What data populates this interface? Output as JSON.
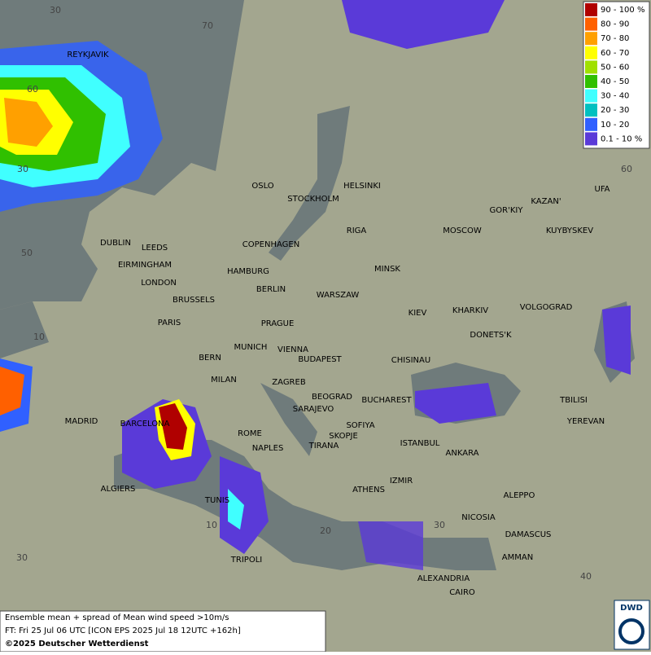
{
  "map": {
    "cities": [
      "REYKJAVIK",
      "DUBLIN",
      "LEEDS",
      "EIRMINGHAM",
      "LONDON",
      "BRUSSELS",
      "PARIS",
      "OSLO",
      "STOCKHOLM",
      "HELSINKI",
      "RIGA",
      "COPENHAGEN",
      "HAMBURG",
      "BERLIN",
      "WARSZAW",
      "MINSK",
      "MOSCOW",
      "GOR'KIY",
      "KAZAN'",
      "UFA",
      "KUYBYSKEV",
      "KIEV",
      "KHARKIV",
      "VOLGOGRAD",
      "DONETS'K",
      "PRAGUE",
      "MUNICH",
      "VIENNA",
      "BERN",
      "BUDAPEST",
      "CHISINAU",
      "MILAN",
      "ZAGREB",
      "BEOGRAD",
      "BUCHAREST",
      "TBILISI",
      "YEREVAN",
      "MADRID",
      "BARCELONA",
      "SARAJEVO",
      "SOFIYA",
      "ROME",
      "SKOPJE",
      "ISTANBUL",
      "ANKARA",
      "NAPLES",
      "TIRANA",
      "IZMIR",
      "ALGIERS",
      "ATHENS",
      "TUNIS",
      "ALEPPO",
      "NICOSIA",
      "DAMASCUS",
      "AMMAN",
      "TRIPOLI",
      "ALEXANDRIA",
      "CAIRO"
    ],
    "grid_labels": [
      "30",
      "70",
      "60",
      "30",
      "50",
      "10",
      "60",
      "30",
      "20",
      "10",
      "30",
      "40"
    ]
  },
  "legend": [
    {
      "label": "90 - 100 %",
      "color": "#b00000"
    },
    {
      "label": "80 - 90",
      "color": "#ff6000"
    },
    {
      "label": "70 - 80",
      "color": "#ffa000"
    },
    {
      "label": "60 - 70",
      "color": "#ffff00"
    },
    {
      "label": "50 - 60",
      "color": "#a0e000"
    },
    {
      "label": "40 - 50",
      "color": "#30c000"
    },
    {
      "label": "30 - 40",
      "color": "#40ffff"
    },
    {
      "label": "20 - 30",
      "color": "#00c0c0"
    },
    {
      "label": "10 - 20",
      "color": "#3060ff"
    },
    {
      "label": "0.1 - 10 %",
      "color": "#5a3ad8"
    }
  ],
  "footer": {
    "line1": "Ensemble mean + spread of Mean wind speed >10m/s",
    "line2": "FT: Fri 25 Jul 06 UTC [ICON EPS 2025 Jul 18 12UTC +162h]",
    "copyright": "©2025 Deutscher Wetterdienst"
  },
  "logo": "DWD"
}
